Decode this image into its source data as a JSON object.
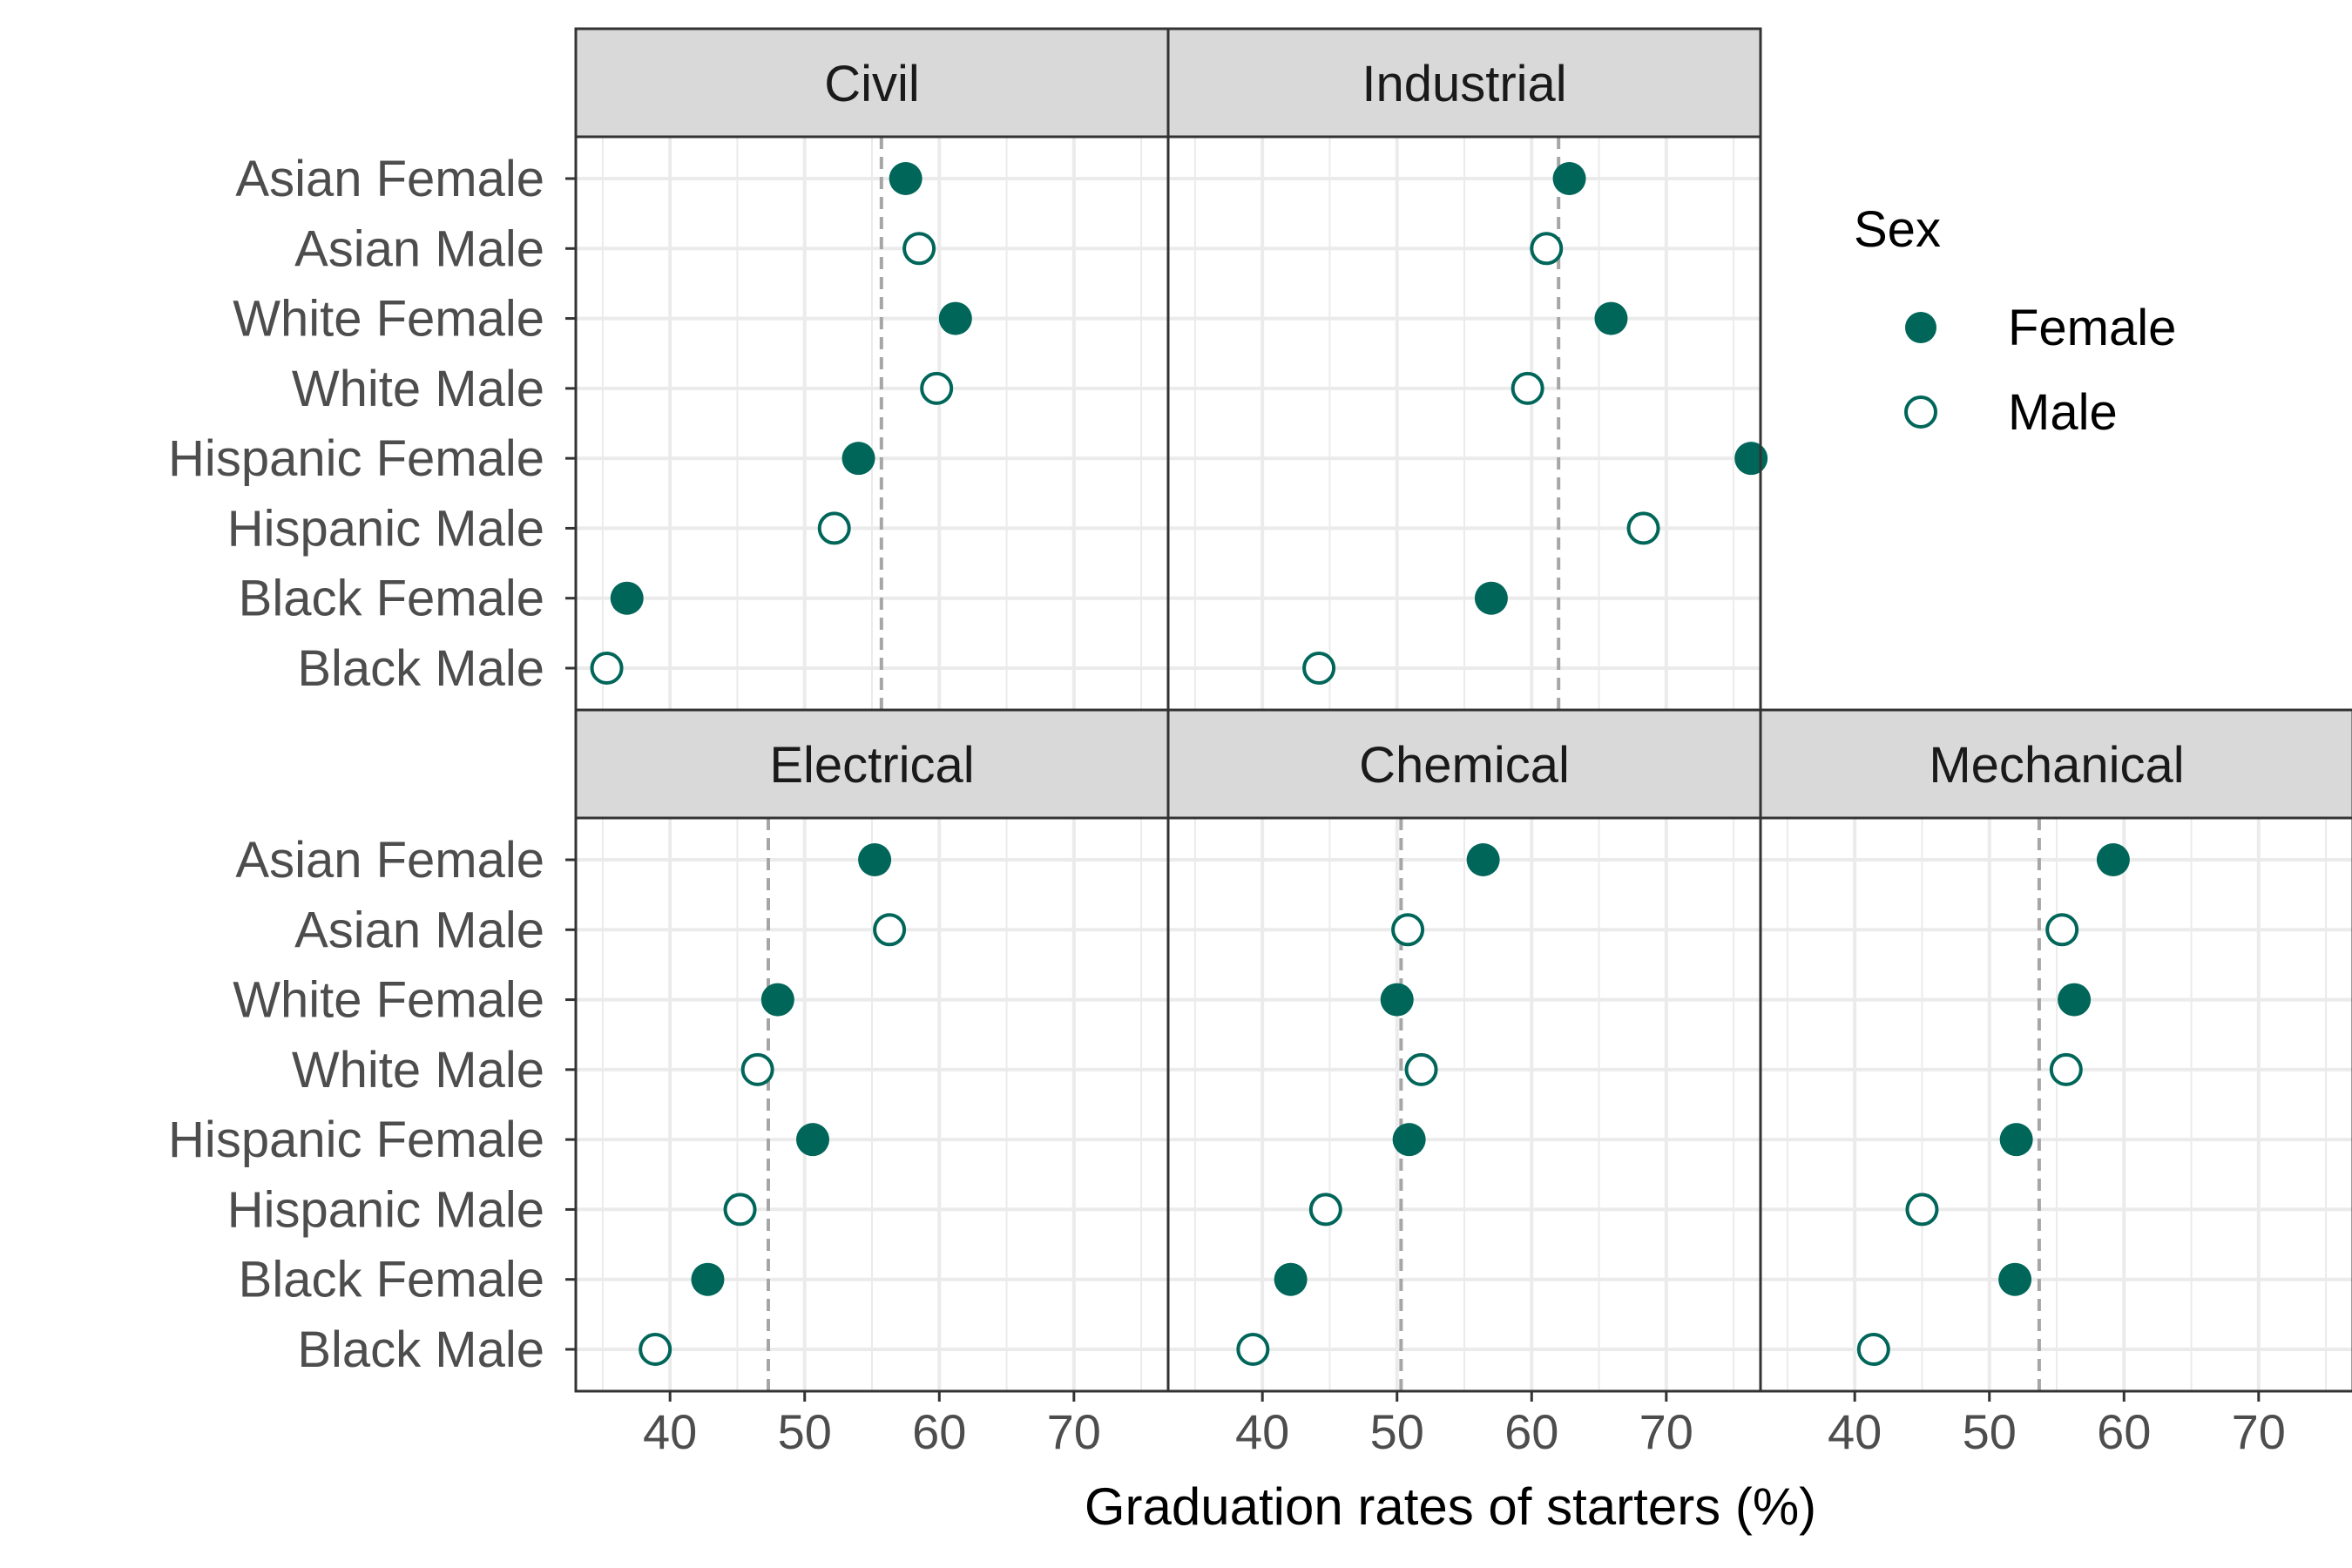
{
  "chart_data": {
    "type": "scatter",
    "xlabel": "Graduation rates of starters (%)",
    "xticks": [
      40,
      50,
      60,
      70
    ],
    "xlim": [
      33,
      77
    ],
    "categories": [
      "Asian Female",
      "Asian Male",
      "White Female",
      "White Male",
      "Hispanic Female",
      "Hispanic Male",
      "Black Female",
      "Black Male"
    ],
    "legend": {
      "title": "Sex",
      "position": "right",
      "entries": [
        {
          "label": "Female",
          "filled": true
        },
        {
          "label": "Male",
          "filled": false
        }
      ]
    },
    "colors": {
      "point": "#00665a",
      "strip_fill": "#d9d9d9",
      "grid": "#ebebeb",
      "reference_line": "#a6a6a6",
      "border": "#333333"
    },
    "grid": true,
    "panels": [
      {
        "title": "Civil",
        "reference": 55.7,
        "values": [
          57.5,
          58.5,
          61.2,
          59.8,
          54.0,
          52.2,
          36.8,
          35.3
        ]
      },
      {
        "title": "Industrial",
        "reference": 62.0,
        "values": [
          62.8,
          61.1,
          65.9,
          59.7,
          76.3,
          68.3,
          57.0,
          44.2
        ]
      },
      {
        "title": "Electrical",
        "reference": 47.3,
        "values": [
          55.2,
          56.3,
          48.0,
          46.5,
          50.6,
          45.2,
          42.8,
          38.9
        ]
      },
      {
        "title": "Chemical",
        "reference": 50.3,
        "values": [
          56.4,
          50.8,
          50.0,
          51.8,
          50.9,
          44.7,
          42.1,
          39.3
        ]
      },
      {
        "title": "Mechanical",
        "reference": 53.7,
        "values": [
          59.2,
          55.4,
          56.3,
          55.7,
          52.0,
          45.0,
          51.9,
          41.4
        ]
      }
    ]
  }
}
